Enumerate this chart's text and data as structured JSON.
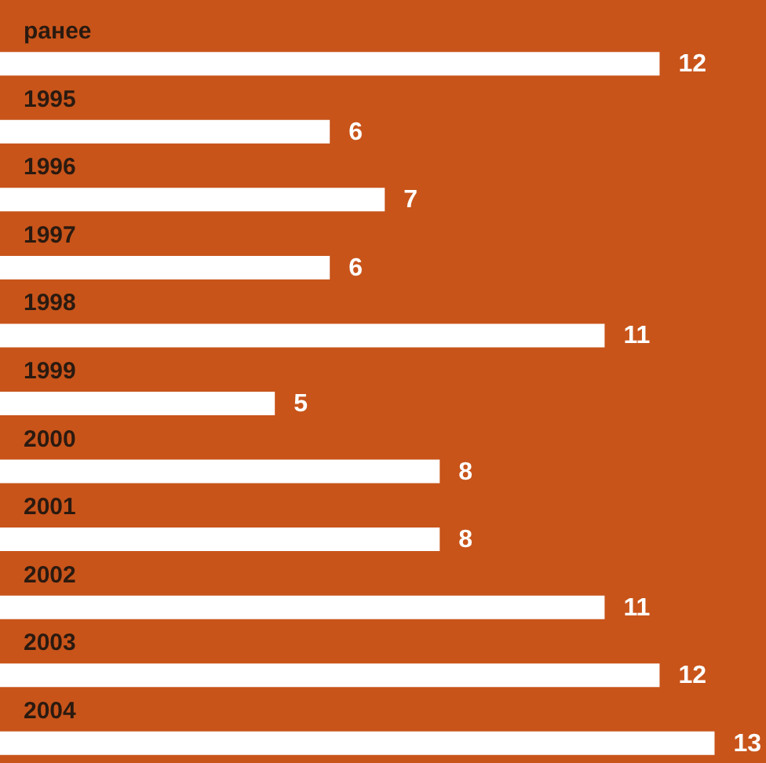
{
  "chart_data": {
    "type": "bar",
    "orientation": "horizontal",
    "categories": [
      "ранее",
      "1995",
      "1996",
      "1997",
      "1998",
      "1999",
      "2000",
      "2001",
      "2002",
      "2003",
      "2004"
    ],
    "values": [
      12,
      6,
      7,
      6,
      11,
      5,
      8,
      8,
      11,
      12,
      13
    ],
    "color": "#ffffff",
    "data_labels": true
  }
}
